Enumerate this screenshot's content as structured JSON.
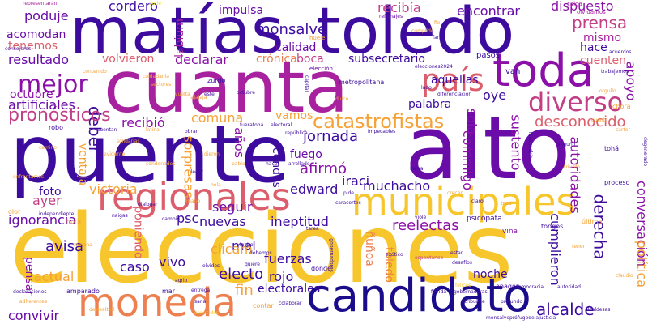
{
  "colors": {
    "navy": "#1b0c8c",
    "indigo": "#3d0c9e",
    "purple": "#6a0ca8",
    "violet": "#8b10a8",
    "magenta": "#a822a0",
    "rose": "#c23e86",
    "coral": "#dc5e6c",
    "orange": "#ee7f4f",
    "amber": "#f6a136",
    "gold": "#f7c62c",
    "yellow": "#f2ec25"
  },
  "words": [
    {
      "text": "matías",
      "color": "indigo"
    },
    {
      "text": "toledo",
      "color": "indigo"
    },
    {
      "text": "cuanta",
      "color": "magenta"
    },
    {
      "text": "alto",
      "color": "purple"
    },
    {
      "text": "puente",
      "color": "indigo"
    },
    {
      "text": "elecciones",
      "color": "gold"
    },
    {
      "text": "municipales",
      "color": "gold"
    },
    {
      "text": "regionales",
      "color": "coral"
    },
    {
      "text": "candidato",
      "color": "navy"
    },
    {
      "text": "moneda",
      "color": "orange"
    },
    {
      "text": "país",
      "color": "coral"
    },
    {
      "text": "toda",
      "color": "violet"
    },
    {
      "text": "diverso",
      "color": "rose"
    },
    {
      "text": "mejor",
      "color": "violet"
    },
    {
      "text": "deber",
      "color": "indigo"
    },
    {
      "text": "catastrofistas",
      "color": "amber"
    },
    {
      "text": "pronósticos",
      "color": "rose"
    },
    {
      "text": "monsalve",
      "color": "indigo"
    },
    {
      "text": "resultado",
      "color": "purple"
    },
    {
      "text": "poduje",
      "color": "purple"
    },
    {
      "text": "cordero",
      "color": "indigo"
    },
    {
      "text": "impulsa",
      "color": "purple"
    },
    {
      "text": "recibía",
      "color": "rose"
    },
    {
      "text": "encontrar",
      "color": "purple"
    },
    {
      "text": "dispuesto",
      "color": "violet"
    },
    {
      "text": "prensa",
      "color": "rose"
    },
    {
      "text": "mismo",
      "color": "magenta"
    },
    {
      "text": "acomodan",
      "color": "purple"
    },
    {
      "text": "tenemos",
      "color": "coral"
    },
    {
      "text": "calidad",
      "color": "purple"
    },
    {
      "text": "boca",
      "color": "rose"
    },
    {
      "text": "labium",
      "color": "magenta"
    },
    {
      "text": "volvieron",
      "color": "coral"
    },
    {
      "text": "declarar",
      "color": "violet"
    },
    {
      "text": "crónica",
      "color": "orange"
    },
    {
      "text": "subsecretario",
      "color": "indigo"
    },
    {
      "text": "aquellas",
      "color": "indigo"
    },
    {
      "text": "cuenten",
      "color": "coral"
    },
    {
      "text": "hace",
      "color": "indigo"
    },
    {
      "text": "apoyo",
      "color": "violet"
    },
    {
      "text": "octubre",
      "color": "violet"
    },
    {
      "text": "artificiales",
      "color": "purple"
    },
    {
      "text": "palabra",
      "color": "indigo"
    },
    {
      "text": "oye",
      "color": "indigo"
    },
    {
      "text": "comuna",
      "color": "amber"
    },
    {
      "text": "vamos",
      "color": "amber"
    },
    {
      "text": "desconocido",
      "color": "coral"
    },
    {
      "text": "recibió",
      "color": "violet"
    },
    {
      "text": "años",
      "color": "violet"
    },
    {
      "text": "jornada",
      "color": "indigo"
    },
    {
      "text": "sola",
      "color": "violet"
    },
    {
      "text": "sustento",
      "color": "violet"
    },
    {
      "text": "fuego",
      "color": "purple"
    },
    {
      "text": "afirmó",
      "color": "violet"
    },
    {
      "text": "condes",
      "color": "indigo"
    },
    {
      "text": "iraci",
      "color": "indigo"
    },
    {
      "text": "commigo",
      "color": "violet"
    },
    {
      "text": "sorpresas",
      "color": "amber"
    },
    {
      "text": "ventaja",
      "color": "amber"
    },
    {
      "text": "foto",
      "color": "indigo"
    },
    {
      "text": "victoria",
      "color": "amber"
    },
    {
      "text": "seguir",
      "color": "purple"
    },
    {
      "text": "edward",
      "color": "indigo"
    },
    {
      "text": "muchacho",
      "color": "indigo"
    },
    {
      "text": "autoridades",
      "color": "violet"
    },
    {
      "text": "derecha",
      "color": "indigo"
    },
    {
      "text": "ayer",
      "color": "rose"
    },
    {
      "text": "ignorancia",
      "color": "purple"
    },
    {
      "text": "psc",
      "color": "indigo"
    },
    {
      "text": "nuevas",
      "color": "indigo"
    },
    {
      "text": "ineptitud",
      "color": "indigo"
    },
    {
      "text": "reelectas",
      "color": "violet"
    },
    {
      "text": "conversación",
      "color": "violet"
    },
    {
      "text": "cumplieron",
      "color": "indigo"
    },
    {
      "text": "poniendo",
      "color": "coral"
    },
    {
      "text": "mal",
      "color": "indigo"
    },
    {
      "text": "ñuñoa",
      "color": "orange"
    },
    {
      "text": "toledo",
      "color": "orange"
    },
    {
      "text": "clicam",
      "color": "amber"
    },
    {
      "text": "avisa",
      "color": "indigo"
    },
    {
      "text": "vivo",
      "color": "indigo"
    },
    {
      "text": "fuerzas",
      "color": "indigo"
    },
    {
      "text": "pensar",
      "color": "violet"
    },
    {
      "text": "actual",
      "color": "amber"
    },
    {
      "text": "caso",
      "color": "indigo"
    },
    {
      "text": "electo",
      "color": "indigo"
    },
    {
      "text": "rojo",
      "color": "indigo"
    },
    {
      "text": "fin",
      "color": "amber"
    },
    {
      "text": "electorales",
      "color": "indigo"
    },
    {
      "text": "alcalde",
      "color": "indigo"
    },
    {
      "text": "noche",
      "color": "indigo"
    },
    {
      "text": "convivir",
      "color": "purple"
    },
    {
      "text": "política",
      "color": "amber"
    },
    {
      "text": "representarán",
      "color": "magenta"
    },
    {
      "text": "dudé",
      "color": "yellow"
    },
    {
      "text": "olvidamos",
      "color": "magenta"
    },
    {
      "text": "caiga",
      "color": "magenta"
    },
    {
      "text": "conocidos",
      "color": "gold"
    },
    {
      "text": "tras",
      "color": "amber"
    },
    {
      "text": "última",
      "color": "amber"
    },
    {
      "text": "viña",
      "color": "violet"
    },
    {
      "text": "psicópata",
      "color": "indigo"
    },
    {
      "text": "tongos",
      "color": "indigo"
    },
    {
      "text": "proceso",
      "color": "indigo"
    },
    {
      "text": "gobernadores",
      "color": "indigo"
    },
    {
      "text": "espontáneo",
      "color": "rose"
    },
    {
      "text": "acuerdos",
      "color": "indigo"
    },
    {
      "text": "elección",
      "color": "purple"
    },
    {
      "text": "huele",
      "color": "amber"
    },
    {
      "text": "fiel",
      "color": "amber"
    },
    {
      "text": "refichajes",
      "color": "purple"
    },
    {
      "text": "metropolitana",
      "color": "indigo"
    },
    {
      "text": "zurdo",
      "color": "indigo"
    },
    {
      "text": "hora",
      "color": "amber"
    },
    {
      "text": "dónde",
      "color": "indigo"
    },
    {
      "text": "amparado",
      "color": "indigo"
    },
    {
      "text": "mar",
      "color": "indigo"
    },
    {
      "text": "contar",
      "color": "amber"
    },
    {
      "text": "colaborar",
      "color": "indigo"
    },
    {
      "text": "florida",
      "color": "indigo"
    },
    {
      "text": "gobernadoras",
      "color": "indigo"
    },
    {
      "text": "apagón",
      "color": "indigo"
    },
    {
      "text": "monsalveprófugodelajusticia",
      "color": "indigo"
    },
    {
      "text": "declaraciones",
      "color": "indigo"
    },
    {
      "text": "adherentes",
      "color": "amber"
    },
    {
      "text": "felices",
      "color": "gold"
    },
    {
      "text": "democracia",
      "color": "indigo"
    },
    {
      "text": "autoridad",
      "color": "indigo"
    },
    {
      "text": "claudio",
      "color": "amber"
    },
    {
      "text": "profundo",
      "color": "indigo"
    },
    {
      "text": "tohá",
      "color": "indigo"
    },
    {
      "text": "llegar",
      "color": "indigo"
    },
    {
      "text": "pide",
      "color": "indigo"
    },
    {
      "text": "tarea",
      "color": "indigo"
    },
    {
      "text": "debemos",
      "color": "indigo"
    },
    {
      "text": "independiente",
      "color": "indigo"
    },
    {
      "text": "olor",
      "color": "amber"
    },
    {
      "text": "consejeros",
      "color": "indigo"
    },
    {
      "text": "contenido",
      "color": "amber"
    },
    {
      "text": "sectores",
      "color": "amber"
    },
    {
      "text": "vuelta",
      "color": "amber"
    },
    {
      "text": "éste",
      "color": "indigo"
    },
    {
      "text": "latina",
      "color": "amber"
    },
    {
      "text": "robo",
      "color": "indigo"
    },
    {
      "text": "hacer",
      "color": "indigo"
    },
    {
      "text": "viole",
      "color": "indigo"
    },
    {
      "text": "llama",
      "color": "indigo"
    },
    {
      "text": "electoral",
      "color": "indigo"
    },
    {
      "text": "chora",
      "color": "amber"
    },
    {
      "text": "trabajemos",
      "color": "indigo"
    },
    {
      "text": "carter",
      "color": "amber"
    },
    {
      "text": "triunfo",
      "color": "amber"
    },
    {
      "text": "degenerado",
      "color": "indigo"
    },
    {
      "text": "impecables",
      "color": "indigo"
    },
    {
      "text": "facebookic",
      "color": "indigo"
    },
    {
      "text": "elecciones2024",
      "color": "indigo"
    },
    {
      "text": "diferenciación",
      "color": "indigo"
    },
    {
      "text": "cumplido",
      "color": "amber"
    },
    {
      "text": "pasos",
      "color": "indigo"
    },
    {
      "text": "van",
      "color": "indigo"
    },
    {
      "text": "alcaldesas",
      "color": "indigo"
    },
    {
      "text": "atribuirse",
      "color": "indigo"
    },
    {
      "text": "república",
      "color": "indigo"
    },
    {
      "text": "agrio",
      "color": "indigo"
    },
    {
      "text": "fueratohá",
      "color": "indigo"
    },
    {
      "text": "semana",
      "color": "amber"
    },
    {
      "text": "invito",
      "color": "indigo"
    },
    {
      "text": "entrega",
      "color": "indigo"
    },
    {
      "text": "olvides",
      "color": "indigo"
    },
    {
      "text": "pablo",
      "color": "amber"
    },
    {
      "text": "naigas",
      "color": "indigo"
    },
    {
      "text": "tener",
      "color": "amber"
    },
    {
      "text": "dialogar",
      "color": "indigo"
    },
    {
      "text": "cambio",
      "color": "indigo"
    },
    {
      "text": "condenados",
      "color": "amber"
    },
    {
      "text": "arrollado",
      "color": "indigo"
    },
    {
      "text": "cuidadanía",
      "color": "amber"
    },
    {
      "text": "orgullo",
      "color": "amber"
    },
    {
      "text": "deslealtad",
      "color": "amber"
    },
    {
      "text": "ninguno",
      "color": "indigo"
    },
    {
      "text": "dulce",
      "color": "amber"
    },
    {
      "text": "cuanto",
      "color": "amber"
    },
    {
      "text": "jajajaja",
      "color": "amber"
    },
    {
      "text": "estar",
      "color": "indigo"
    },
    {
      "text": "desafíos",
      "color": "indigo"
    },
    {
      "text": "exótico",
      "color": "indigo"
    },
    {
      "text": "lado",
      "color": "indigo"
    },
    {
      "text": "solidarias",
      "color": "amber"
    },
    {
      "text": "mano",
      "color": "amber"
    },
    {
      "text": "caracortes",
      "color": "indigo"
    },
    {
      "text": "evidente",
      "color": "amber"
    },
    {
      "text": "cuentan",
      "color": "indigo"
    },
    {
      "text": "obrar",
      "color": "indigo"
    },
    {
      "text": "dieron",
      "color": "amber"
    },
    {
      "text": "fant",
      "color": "indigo"
    },
    {
      "text": "hola",
      "color": "amber"
    },
    {
      "text": "quiere",
      "color": "indigo"
    },
    {
      "text": "camino",
      "color": "amber"
    },
    {
      "text": "enfrentamos",
      "color": "amber"
    },
    {
      "text": "claro",
      "color": "indigo"
    },
    {
      "text": "crecen",
      "color": "amber"
    },
    {
      "text": "capital",
      "color": "indigo"
    },
    {
      "text": "sana",
      "color": "indigo"
    },
    {
      "text": "octubre",
      "color": "indigo"
    }
  ]
}
